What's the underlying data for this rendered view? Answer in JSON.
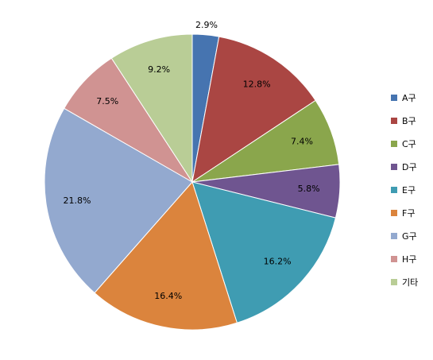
{
  "chart_data": {
    "type": "pie",
    "categories": [
      "A구",
      "B구",
      "C구",
      "D구",
      "E구",
      "F구",
      "G구",
      "H구",
      "기타"
    ],
    "values": [
      2.9,
      12.8,
      7.4,
      5.8,
      16.2,
      16.4,
      21.8,
      7.5,
      9.2
    ],
    "labels": [
      "2.9%",
      "12.8%",
      "7.4%",
      "5.8%",
      "16.2%",
      "16.4%",
      "21.8%",
      "7.5%",
      "9.2%"
    ],
    "colors": [
      "#4674B0",
      "#AA4643",
      "#8AA64C",
      "#6F5590",
      "#3F9CB2",
      "#DB843D",
      "#93A9CF",
      "#D09392",
      "#B9CD96"
    ],
    "start_angle": "12 o'clock",
    "direction": "clockwise",
    "legend_position": "right"
  }
}
